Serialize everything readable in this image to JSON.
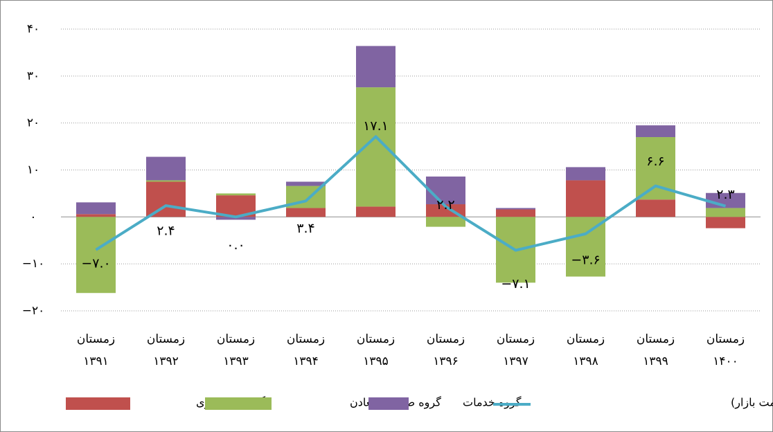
{
  "chart_data": {
    "type": "stacked-bar-line",
    "categories": [
      [
        "زمستان",
        "۱۳۹۱"
      ],
      [
        "زمستان",
        "۱۳۹۲"
      ],
      [
        "زمستان",
        "۱۳۹۳"
      ],
      [
        "زمستان",
        "۱۳۹۴"
      ],
      [
        "زمستان",
        "۱۳۹۵"
      ],
      [
        "زمستان",
        "۱۳۹۶"
      ],
      [
        "زمستان",
        "۱۳۹۷"
      ],
      [
        "زمستان",
        "۱۳۹۸"
      ],
      [
        "زمستان",
        "۱۳۹۹"
      ],
      [
        "زمستان",
        "۱۴۰۰"
      ]
    ],
    "series": [
      {
        "name": "گروه کشاورزی",
        "color": "#c0504d",
        "type": "bar",
        "values": [
          0.6,
          7.5,
          4.6,
          1.9,
          2.2,
          2.7,
          1.6,
          7.8,
          3.7,
          -2.4
        ]
      },
      {
        "name": "گروه صنایع و معادن",
        "color": "#9bbb59",
        "type": "bar",
        "values": [
          -16.2,
          0.3,
          0.4,
          4.7,
          25.4,
          -2.1,
          -14.0,
          -12.7,
          13.3,
          1.9
        ]
      },
      {
        "name": "گروه خدمات",
        "color": "#8064a2",
        "type": "bar",
        "values": [
          2.5,
          5.0,
          -0.6,
          0.9,
          8.8,
          5.9,
          0.3,
          2.8,
          2.5,
          3.2
        ]
      },
      {
        "name": "محصول ناخالص داخلی (به قیمت بازار)",
        "color": "#4bacc6",
        "type": "line",
        "values": [
          -7.0,
          2.4,
          0.0,
          3.4,
          17.1,
          2.2,
          -7.1,
          -3.6,
          6.6,
          2.3
        ],
        "value_labels": [
          "−۷.۰",
          "۲.۴",
          "۰.۰",
          "۳.۴",
          "۱۷.۱",
          "۲.۲",
          "−۷.۱",
          "−۳.۶",
          "۶.۶",
          "۲.۳"
        ]
      }
    ],
    "ylim": [
      -20,
      40
    ],
    "yticks": [
      {
        "value": -20,
        "label": "−۲۰"
      },
      {
        "value": -10,
        "label": "−۱۰"
      },
      {
        "value": 0,
        "label": "۰"
      },
      {
        "value": 10,
        "label": "۱۰"
      },
      {
        "value": 20,
        "label": "۲۰"
      },
      {
        "value": 30,
        "label": "۳۰"
      },
      {
        "value": 40,
        "label": "۴۰"
      }
    ],
    "grid": true,
    "legend": "bottom"
  }
}
